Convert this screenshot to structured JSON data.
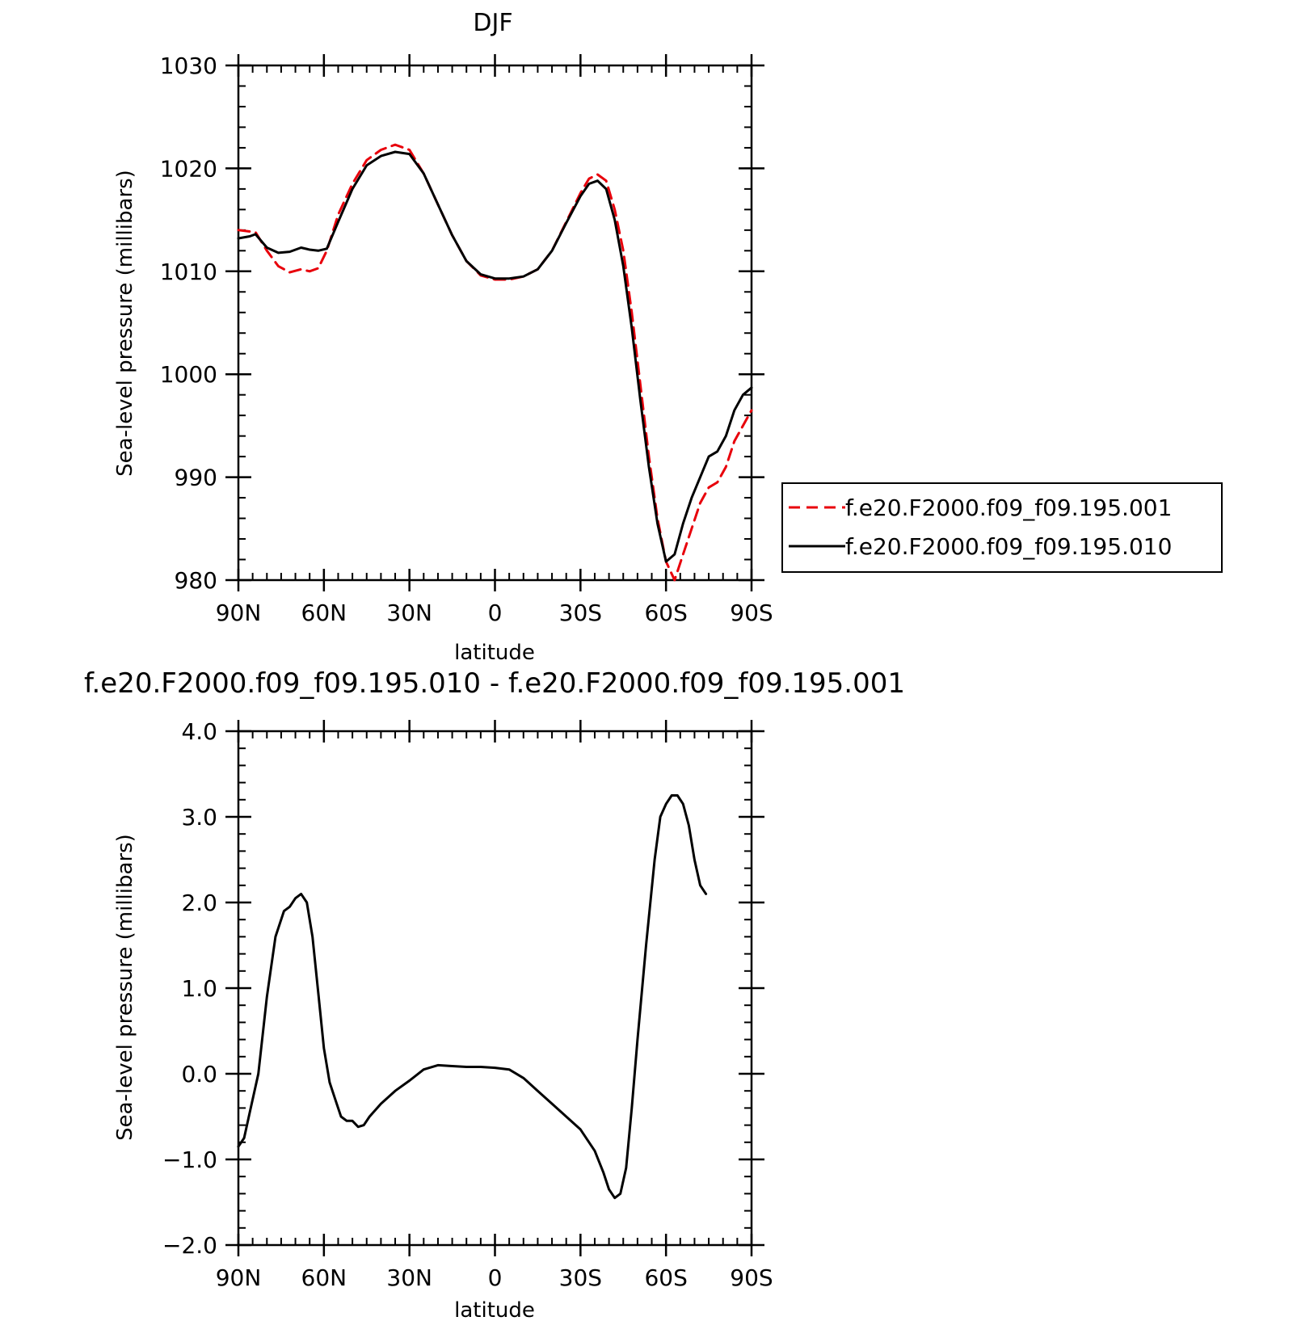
{
  "chart_data": [
    {
      "type": "line",
      "title": "DJF",
      "xlabel": "latitude",
      "ylabel": "Sea-level pressure (millibars)",
      "xlim": [
        90,
        -90
      ],
      "ylim": [
        980,
        1030
      ],
      "x_ticks": [
        {
          "value": 90,
          "label": "90N"
        },
        {
          "value": 60,
          "label": "60N"
        },
        {
          "value": 30,
          "label": "30N"
        },
        {
          "value": 0,
          "label": "0"
        },
        {
          "value": -30,
          "label": "30S"
        },
        {
          "value": -60,
          "label": "60S"
        },
        {
          "value": -90,
          "label": "90S"
        }
      ],
      "y_ticks": [
        {
          "value": 1030,
          "label": "1030"
        },
        {
          "value": 1020,
          "label": "1020"
        },
        {
          "value": 1010,
          "label": "1010"
        },
        {
          "value": 1000,
          "label": "1000"
        },
        {
          "value": 990,
          "label": "990"
        },
        {
          "value": 980,
          "label": "980"
        }
      ],
      "grid": false,
      "legend_position": "right",
      "series": [
        {
          "name": "f.e20.F2000.f09_f09.195.001",
          "color": "#e8000b",
          "dash": "dashed",
          "points": [
            [
              90,
              1014.0
            ],
            [
              84,
              1013.8
            ],
            [
              80,
              1012.0
            ],
            [
              76,
              1010.5
            ],
            [
              72,
              1009.9
            ],
            [
              68,
              1010.2
            ],
            [
              65,
              1010.0
            ],
            [
              62,
              1010.3
            ],
            [
              59,
              1012.0
            ],
            [
              55,
              1015.5
            ],
            [
              50,
              1018.5
            ],
            [
              45,
              1020.8
            ],
            [
              40,
              1021.8
            ],
            [
              35,
              1022.3
            ],
            [
              30,
              1021.8
            ],
            [
              25,
              1019.5
            ],
            [
              20,
              1016.5
            ],
            [
              15,
              1013.5
            ],
            [
              10,
              1011.0
            ],
            [
              5,
              1009.6
            ],
            [
              0,
              1009.2
            ],
            [
              -5,
              1009.2
            ],
            [
              -10,
              1009.5
            ],
            [
              -15,
              1010.2
            ],
            [
              -20,
              1012.0
            ],
            [
              -25,
              1014.8
            ],
            [
              -30,
              1017.6
            ],
            [
              -33,
              1019.0
            ],
            [
              -36,
              1019.4
            ],
            [
              -39,
              1018.8
            ],
            [
              -42,
              1016.0
            ],
            [
              -45,
              1012.0
            ],
            [
              -48,
              1006.0
            ],
            [
              -51,
              999.0
            ],
            [
              -54,
              992.0
            ],
            [
              -57,
              986.0
            ],
            [
              -60,
              981.8
            ],
            [
              -63,
              980.0
            ],
            [
              -66,
              982.5
            ],
            [
              -69,
              985.0
            ],
            [
              -72,
              987.5
            ],
            [
              -75,
              989.0
            ],
            [
              -78,
              989.5
            ],
            [
              -81,
              991.0
            ],
            [
              -84,
              993.5
            ],
            [
              -87,
              995.0
            ],
            [
              -90,
              996.5
            ]
          ]
        },
        {
          "name": "f.e20.F2000.f09_f09.195.010",
          "color": "#000000",
          "dash": "solid",
          "points": [
            [
              90,
              1013.2
            ],
            [
              86,
              1013.4
            ],
            [
              84,
              1013.6
            ],
            [
              80,
              1012.3
            ],
            [
              76,
              1011.8
            ],
            [
              72,
              1011.9
            ],
            [
              68,
              1012.3
            ],
            [
              65,
              1012.1
            ],
            [
              62,
              1012.0
            ],
            [
              59,
              1012.2
            ],
            [
              55,
              1014.8
            ],
            [
              50,
              1018.0
            ],
            [
              45,
              1020.3
            ],
            [
              40,
              1021.2
            ],
            [
              35,
              1021.6
            ],
            [
              30,
              1021.4
            ],
            [
              25,
              1019.5
            ],
            [
              20,
              1016.5
            ],
            [
              15,
              1013.5
            ],
            [
              10,
              1011.0
            ],
            [
              5,
              1009.7
            ],
            [
              0,
              1009.3
            ],
            [
              -5,
              1009.3
            ],
            [
              -10,
              1009.5
            ],
            [
              -15,
              1010.2
            ],
            [
              -20,
              1012.0
            ],
            [
              -25,
              1014.7
            ],
            [
              -30,
              1017.3
            ],
            [
              -33,
              1018.5
            ],
            [
              -36,
              1018.8
            ],
            [
              -39,
              1018.0
            ],
            [
              -42,
              1015.0
            ],
            [
              -45,
              1010.5
            ],
            [
              -48,
              1004.5
            ],
            [
              -51,
              997.5
            ],
            [
              -54,
              991.0
            ],
            [
              -57,
              985.5
            ],
            [
              -60,
              981.8
            ],
            [
              -63,
              982.5
            ],
            [
              -66,
              985.5
            ],
            [
              -69,
              988.0
            ],
            [
              -72,
              990.0
            ],
            [
              -75,
              992.0
            ],
            [
              -78,
              992.5
            ],
            [
              -81,
              994.0
            ],
            [
              -84,
              996.5
            ],
            [
              -87,
              998.0
            ],
            [
              -90,
              998.7
            ]
          ]
        }
      ]
    },
    {
      "type": "line",
      "title": "f.e20.F2000.f09_f09.195.010 - f.e20.F2000.f09_f09.195.001",
      "xlabel": "latitude",
      "ylabel": "Sea-level pressure (millibars)",
      "xlim": [
        90,
        -90
      ],
      "ylim": [
        -2.0,
        4.0
      ],
      "x_ticks": [
        {
          "value": 90,
          "label": "90N"
        },
        {
          "value": 60,
          "label": "60N"
        },
        {
          "value": 30,
          "label": "30N"
        },
        {
          "value": 0,
          "label": "0"
        },
        {
          "value": -30,
          "label": "30S"
        },
        {
          "value": -60,
          "label": "60S"
        },
        {
          "value": -90,
          "label": "90S"
        }
      ],
      "y_ticks": [
        {
          "value": 4.0,
          "label": "4.0"
        },
        {
          "value": 3.0,
          "label": "3.0"
        },
        {
          "value": 2.0,
          "label": "2.0"
        },
        {
          "value": 1.0,
          "label": "1.0"
        },
        {
          "value": 0.0,
          "label": "0.0"
        },
        {
          "value": -1.0,
          "label": "−1.0"
        },
        {
          "value": -2.0,
          "label": "−2.0"
        }
      ],
      "grid": false,
      "series": [
        {
          "color": "#000000",
          "dash": "solid",
          "points": [
            [
              90,
              -0.85
            ],
            [
              88,
              -0.75
            ],
            [
              86,
              -0.45
            ],
            [
              83,
              0.0
            ],
            [
              80,
              0.9
            ],
            [
              77,
              1.6
            ],
            [
              74,
              1.9
            ],
            [
              72,
              1.95
            ],
            [
              70,
              2.05
            ],
            [
              68,
              2.1
            ],
            [
              66,
              2.0
            ],
            [
              64,
              1.6
            ],
            [
              62,
              0.95
            ],
            [
              60,
              0.3
            ],
            [
              58,
              -0.1
            ],
            [
              56,
              -0.3
            ],
            [
              54,
              -0.5
            ],
            [
              52,
              -0.55
            ],
            [
              50,
              -0.55
            ],
            [
              48,
              -0.62
            ],
            [
              46,
              -0.6
            ],
            [
              44,
              -0.5
            ],
            [
              40,
              -0.35
            ],
            [
              35,
              -0.2
            ],
            [
              30,
              -0.08
            ],
            [
              25,
              0.05
            ],
            [
              20,
              0.1
            ],
            [
              15,
              0.09
            ],
            [
              10,
              0.08
            ],
            [
              5,
              0.08
            ],
            [
              0,
              0.07
            ],
            [
              -5,
              0.05
            ],
            [
              -10,
              -0.05
            ],
            [
              -15,
              -0.2
            ],
            [
              -20,
              -0.35
            ],
            [
              -25,
              -0.5
            ],
            [
              -30,
              -0.65
            ],
            [
              -35,
              -0.9
            ],
            [
              -38,
              -1.15
            ],
            [
              -40,
              -1.35
            ],
            [
              -42,
              -1.45
            ],
            [
              -44,
              -1.4
            ],
            [
              -46,
              -1.1
            ],
            [
              -48,
              -0.4
            ],
            [
              -50,
              0.4
            ],
            [
              -53,
              1.5
            ],
            [
              -56,
              2.5
            ],
            [
              -58,
              3.0
            ],
            [
              -60,
              3.15
            ],
            [
              -62,
              3.25
            ],
            [
              -64,
              3.25
            ],
            [
              -66,
              3.15
            ],
            [
              -68,
              2.9
            ],
            [
              -70,
              2.5
            ],
            [
              -72,
              2.2
            ],
            [
              -74,
              2.1
            ]
          ]
        }
      ]
    }
  ]
}
